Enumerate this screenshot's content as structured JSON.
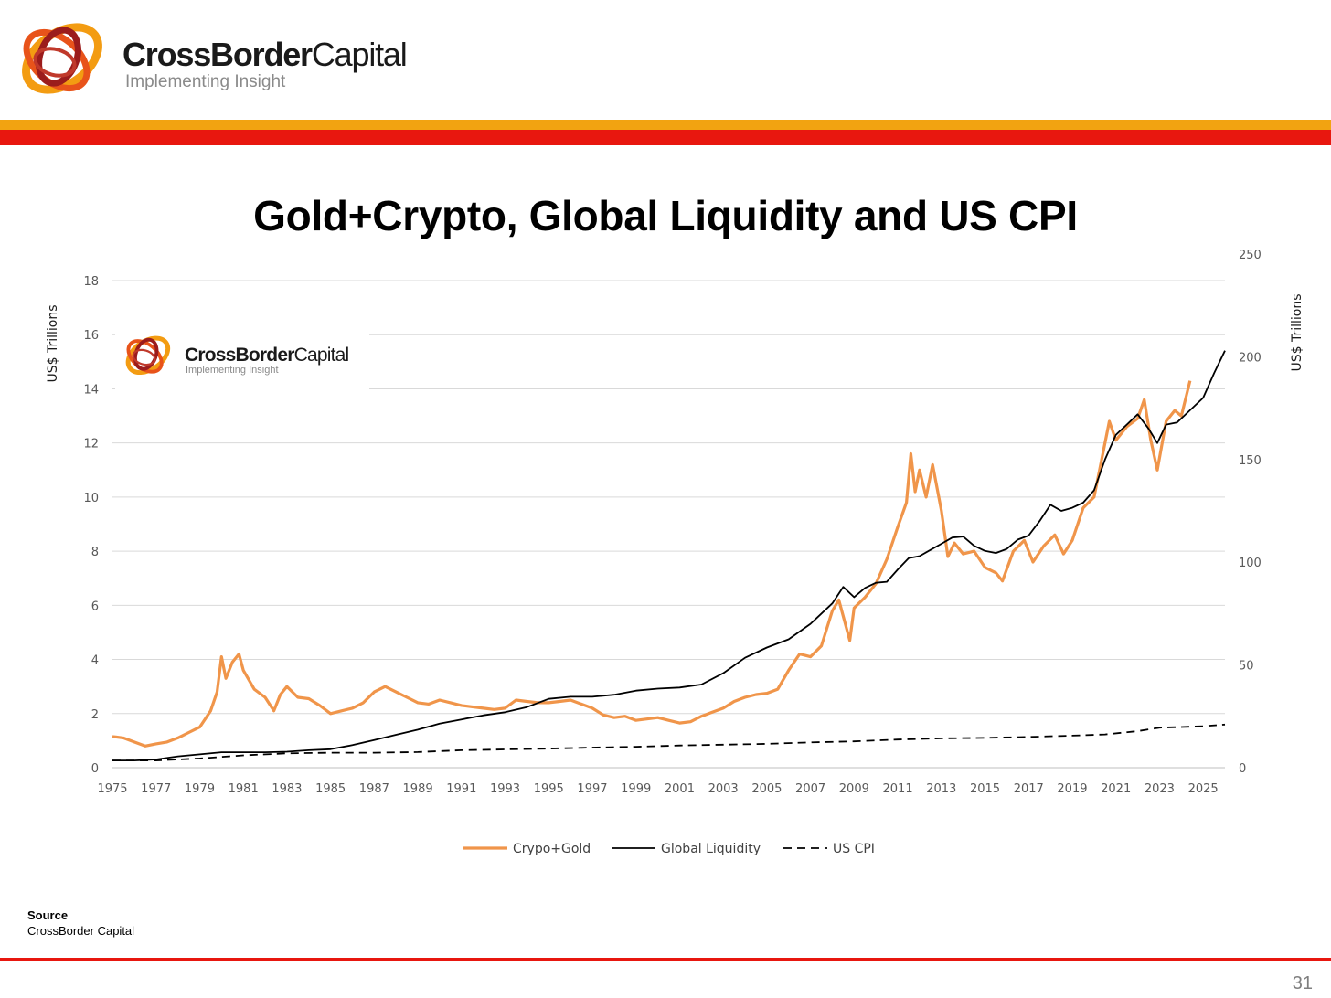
{
  "header": {
    "brand_bold": "CrossBorder",
    "brand_light": "Capital",
    "tagline": "Implementing Insight"
  },
  "colors": {
    "orange_bar": "#f2a311",
    "red_bar": "#e8170f",
    "crypto_gold": "#f0954a",
    "liquidity": "#000000",
    "cpi": "#000000",
    "grid": "#d9d9d9"
  },
  "chart_data": {
    "type": "line",
    "title": "Gold+Crypto, Global Liquidity and US CPI",
    "ylabel": "US$ Trillions",
    "y2label": "US$ Trillions",
    "ylim": [
      0,
      18
    ],
    "y2lim": [
      0,
      250
    ],
    "yticks": [
      "0",
      "2",
      "4",
      "6",
      "8",
      "10",
      "12",
      "14",
      "16",
      "18"
    ],
    "y2ticks": [
      "0",
      "50",
      "100",
      "150",
      "200",
      "250"
    ],
    "xlim": [
      1975,
      2026
    ],
    "xticks": [
      "1975",
      "1977",
      "1979",
      "1981",
      "1983",
      "1985",
      "1987",
      "1989",
      "1991",
      "1993",
      "1995",
      "1997",
      "1999",
      "2001",
      "2003",
      "2005",
      "2007",
      "2009",
      "2011",
      "2013",
      "2015",
      "2017",
      "2019",
      "2021",
      "2023",
      "2025"
    ],
    "grid": true,
    "legend_position": "bottom",
    "series": [
      {
        "name": "Crypo+Gold",
        "axis": "left",
        "points": [
          [
            1975.0,
            1.15
          ],
          [
            1975.5,
            1.1
          ],
          [
            1976.0,
            0.95
          ],
          [
            1976.5,
            0.8
          ],
          [
            1977.0,
            0.88
          ],
          [
            1977.5,
            0.95
          ],
          [
            1978.0,
            1.1
          ],
          [
            1978.5,
            1.3
          ],
          [
            1979.0,
            1.5
          ],
          [
            1979.5,
            2.1
          ],
          [
            1979.8,
            2.8
          ],
          [
            1980.0,
            4.1
          ],
          [
            1980.2,
            3.3
          ],
          [
            1980.5,
            3.9
          ],
          [
            1980.8,
            4.2
          ],
          [
            1981.0,
            3.6
          ],
          [
            1981.5,
            2.9
          ],
          [
            1982.0,
            2.6
          ],
          [
            1982.4,
            2.1
          ],
          [
            1982.7,
            2.7
          ],
          [
            1983.0,
            3.0
          ],
          [
            1983.5,
            2.6
          ],
          [
            1984.0,
            2.55
          ],
          [
            1984.5,
            2.3
          ],
          [
            1985.0,
            2.0
          ],
          [
            1985.5,
            2.1
          ],
          [
            1986.0,
            2.2
          ],
          [
            1986.5,
            2.4
          ],
          [
            1987.0,
            2.8
          ],
          [
            1987.5,
            3.0
          ],
          [
            1988.0,
            2.8
          ],
          [
            1988.5,
            2.6
          ],
          [
            1989.0,
            2.4
          ],
          [
            1989.5,
            2.35
          ],
          [
            1990.0,
            2.5
          ],
          [
            1990.5,
            2.4
          ],
          [
            1991.0,
            2.3
          ],
          [
            1991.5,
            2.25
          ],
          [
            1992.0,
            2.2
          ],
          [
            1992.5,
            2.15
          ],
          [
            1993.0,
            2.2
          ],
          [
            1993.5,
            2.5
          ],
          [
            1994.0,
            2.45
          ],
          [
            1994.5,
            2.4
          ],
          [
            1995.0,
            2.4
          ],
          [
            1995.5,
            2.45
          ],
          [
            1996.0,
            2.5
          ],
          [
            1996.5,
            2.35
          ],
          [
            1997.0,
            2.2
          ],
          [
            1997.5,
            1.95
          ],
          [
            1998.0,
            1.85
          ],
          [
            1998.5,
            1.9
          ],
          [
            1999.0,
            1.75
          ],
          [
            1999.5,
            1.8
          ],
          [
            2000.0,
            1.85
          ],
          [
            2000.5,
            1.75
          ],
          [
            2001.0,
            1.65
          ],
          [
            2001.5,
            1.7
          ],
          [
            2002.0,
            1.9
          ],
          [
            2002.5,
            2.05
          ],
          [
            2003.0,
            2.2
          ],
          [
            2003.5,
            2.45
          ],
          [
            2004.0,
            2.6
          ],
          [
            2004.5,
            2.7
          ],
          [
            2005.0,
            2.75
          ],
          [
            2005.5,
            2.9
          ],
          [
            2006.0,
            3.6
          ],
          [
            2006.5,
            4.2
          ],
          [
            2007.0,
            4.1
          ],
          [
            2007.5,
            4.5
          ],
          [
            2008.0,
            5.8
          ],
          [
            2008.3,
            6.2
          ],
          [
            2008.8,
            4.7
          ],
          [
            2009.0,
            5.9
          ],
          [
            2009.5,
            6.3
          ],
          [
            2010.0,
            6.8
          ],
          [
            2010.5,
            7.7
          ],
          [
            2011.0,
            8.9
          ],
          [
            2011.4,
            9.8
          ],
          [
            2011.6,
            11.6
          ],
          [
            2011.8,
            10.2
          ],
          [
            2012.0,
            11.0
          ],
          [
            2012.3,
            10.0
          ],
          [
            2012.6,
            11.2
          ],
          [
            2013.0,
            9.5
          ],
          [
            2013.3,
            7.8
          ],
          [
            2013.6,
            8.3
          ],
          [
            2014.0,
            7.9
          ],
          [
            2014.5,
            8.0
          ],
          [
            2015.0,
            7.4
          ],
          [
            2015.5,
            7.2
          ],
          [
            2015.8,
            6.9
          ],
          [
            2016.3,
            8.0
          ],
          [
            2016.8,
            8.4
          ],
          [
            2017.2,
            7.6
          ],
          [
            2017.7,
            8.2
          ],
          [
            2018.2,
            8.6
          ],
          [
            2018.6,
            7.9
          ],
          [
            2019.0,
            8.4
          ],
          [
            2019.5,
            9.6
          ],
          [
            2020.0,
            10.0
          ],
          [
            2020.4,
            11.6
          ],
          [
            2020.7,
            12.8
          ],
          [
            2021.0,
            12.1
          ],
          [
            2021.5,
            12.6
          ],
          [
            2022.0,
            12.9
          ],
          [
            2022.3,
            13.6
          ],
          [
            2022.6,
            12.1
          ],
          [
            2022.9,
            11.0
          ],
          [
            2023.3,
            12.8
          ],
          [
            2023.7,
            13.2
          ],
          [
            2024.0,
            13.0
          ],
          [
            2024.4,
            14.3
          ]
        ]
      },
      {
        "name": "Global Liquidity",
        "axis": "right",
        "points": [
          [
            1975.0,
            3.5
          ],
          [
            1976.0,
            3.5
          ],
          [
            1977.0,
            4.0
          ],
          [
            1978.0,
            5.5
          ],
          [
            1979.0,
            6.5
          ],
          [
            1980.0,
            7.5
          ],
          [
            1981.0,
            7.5
          ],
          [
            1982.0,
            7.5
          ],
          [
            1983.0,
            7.8
          ],
          [
            1984.0,
            8.5
          ],
          [
            1985.0,
            9.0
          ],
          [
            1986.0,
            11.0
          ],
          [
            1987.0,
            13.5
          ],
          [
            1988.0,
            16.0
          ],
          [
            1989.0,
            18.5
          ],
          [
            1990.0,
            21.5
          ],
          [
            1991.0,
            23.5
          ],
          [
            1992.0,
            25.5
          ],
          [
            1993.0,
            27.0
          ],
          [
            1994.0,
            29.5
          ],
          [
            1995.0,
            33.5
          ],
          [
            1996.0,
            34.5
          ],
          [
            1997.0,
            34.5
          ],
          [
            1998.0,
            35.5
          ],
          [
            1999.0,
            37.5
          ],
          [
            2000.0,
            38.5
          ],
          [
            2001.0,
            39.0
          ],
          [
            2002.0,
            40.5
          ],
          [
            2003.0,
            46.0
          ],
          [
            2004.0,
            53.5
          ],
          [
            2005.0,
            58.5
          ],
          [
            2006.0,
            62.5
          ],
          [
            2007.0,
            70.0
          ],
          [
            2008.0,
            80.0
          ],
          [
            2008.5,
            88.0
          ],
          [
            2009.0,
            83.0
          ],
          [
            2009.5,
            87.5
          ],
          [
            2010.0,
            90.0
          ],
          [
            2010.5,
            90.5
          ],
          [
            2011.0,
            96.5
          ],
          [
            2011.5,
            102.0
          ],
          [
            2012.0,
            103.0
          ],
          [
            2012.5,
            106.0
          ],
          [
            2013.0,
            109.0
          ],
          [
            2013.5,
            112.0
          ],
          [
            2014.0,
            112.5
          ],
          [
            2014.5,
            108.0
          ],
          [
            2015.0,
            105.5
          ],
          [
            2015.5,
            104.5
          ],
          [
            2016.0,
            106.5
          ],
          [
            2016.5,
            111.0
          ],
          [
            2017.0,
            113.0
          ],
          [
            2017.5,
            120.0
          ],
          [
            2018.0,
            128.0
          ],
          [
            2018.5,
            125.0
          ],
          [
            2019.0,
            126.5
          ],
          [
            2019.5,
            129.0
          ],
          [
            2020.0,
            135.0
          ],
          [
            2020.5,
            150.0
          ],
          [
            2021.0,
            162.0
          ],
          [
            2021.5,
            167.0
          ],
          [
            2022.0,
            172.0
          ],
          [
            2022.5,
            165.0
          ],
          [
            2022.9,
            158.0
          ],
          [
            2023.3,
            167.0
          ],
          [
            2023.8,
            168.0
          ],
          [
            2024.3,
            173.0
          ],
          [
            2025.0,
            180.0
          ],
          [
            2025.5,
            192.0
          ],
          [
            2026.0,
            203.0
          ]
        ]
      },
      {
        "name": "US CPI",
        "axis": "right",
        "points": [
          [
            1975.0,
            3.5
          ],
          [
            1977.0,
            3.5
          ],
          [
            1979.0,
            4.5
          ],
          [
            1981.0,
            6.0
          ],
          [
            1983.0,
            7.0
          ],
          [
            1985.0,
            7.3
          ],
          [
            1987.0,
            7.3
          ],
          [
            1989.0,
            7.6
          ],
          [
            1991.0,
            8.5
          ],
          [
            1993.0,
            8.9
          ],
          [
            1995.0,
            9.3
          ],
          [
            1997.0,
            9.8
          ],
          [
            1999.0,
            10.2
          ],
          [
            2001.0,
            10.8
          ],
          [
            2003.0,
            11.2
          ],
          [
            2005.0,
            11.6
          ],
          [
            2007.0,
            12.3
          ],
          [
            2009.0,
            12.8
          ],
          [
            2011.0,
            13.7
          ],
          [
            2013.0,
            14.3
          ],
          [
            2015.0,
            14.5
          ],
          [
            2017.0,
            15.0
          ],
          [
            2019.0,
            15.6
          ],
          [
            2020.5,
            16.2
          ],
          [
            2022.0,
            17.8
          ],
          [
            2023.0,
            19.5
          ],
          [
            2024.0,
            19.8
          ],
          [
            2025.0,
            20.2
          ],
          [
            2026.0,
            21.0
          ]
        ]
      }
    ]
  },
  "source": {
    "label": "Source",
    "text": "CrossBorder Capital"
  },
  "page_number": "31"
}
